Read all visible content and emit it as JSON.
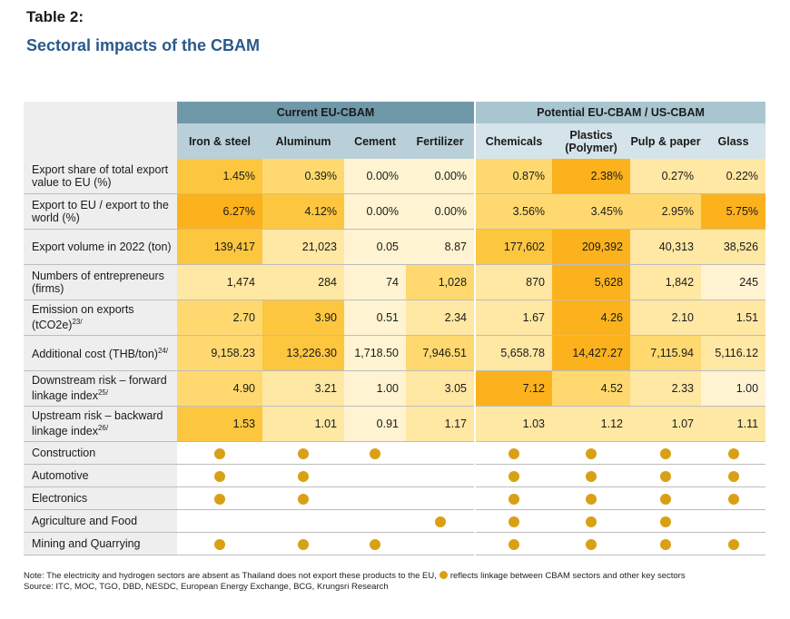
{
  "label": "Table 2:",
  "title": "Sectoral impacts of the CBAM",
  "groups": {
    "current": "Current EU-CBAM",
    "potential": "Potential EU-CBAM / US-CBAM"
  },
  "columns": [
    "Iron & steel",
    "Aluminum",
    "Cement",
    "Fertilizer",
    "Chemicals",
    "Plastics (Polymer)",
    "Pulp & paper",
    "Glass"
  ],
  "rows": [
    {
      "label": "Export share of total export value to EU (%)",
      "values": [
        "1.45%",
        "0.39%",
        "0.00%",
        "0.00%",
        "0.87%",
        "2.38%",
        "0.27%",
        "0.22%"
      ]
    },
    {
      "label": "Export to EU / export to the world (%)",
      "values": [
        "6.27%",
        "4.12%",
        "0.00%",
        "0.00%",
        "3.56%",
        "3.45%",
        "2.95%",
        "5.75%"
      ]
    },
    {
      "label": "Export volume in 2022 (ton)",
      "values": [
        "139,417",
        "21,023",
        "0.05",
        "8.87",
        "177,602",
        "209,392",
        "40,313",
        "38,526"
      ]
    },
    {
      "label": "Numbers of entrepreneurs (firms)",
      "values": [
        "1,474",
        "284",
        "74",
        "1,028",
        "870",
        "5,628",
        "1,842",
        "245"
      ]
    },
    {
      "label": "Emission on exports (tCO2e)",
      "sup": "23/",
      "values": [
        "2.70",
        "3.90",
        "0.51",
        "2.34",
        "1.67",
        "4.26",
        "2.10",
        "1.51"
      ]
    },
    {
      "label": "Additional cost (THB/ton)",
      "sup": "24/",
      "values": [
        "9,158.23",
        "13,226.30",
        "1,718.50",
        "7,946.51",
        "5,658.78",
        "14,427.27",
        "7,115.94",
        "5,116.12"
      ]
    },
    {
      "label": "Downstream risk – forward linkage index",
      "sup": "25/",
      "values": [
        "4.90",
        "3.21",
        "1.00",
        "3.05",
        "7.12",
        "4.52",
        "2.33",
        "1.00"
      ]
    },
    {
      "label": "Upstream risk – backward linkage index",
      "sup": "26/",
      "values": [
        "1.53",
        "1.01",
        "0.91",
        "1.17",
        "1.03",
        "1.12",
        "1.07",
        "1.11"
      ]
    }
  ],
  "sectors": [
    {
      "label": "Construction",
      "dots": [
        true,
        true,
        true,
        false,
        true,
        true,
        true,
        true
      ]
    },
    {
      "label": "Automotive",
      "dots": [
        true,
        true,
        false,
        false,
        true,
        true,
        true,
        true
      ]
    },
    {
      "label": "Electronics",
      "dots": [
        true,
        true,
        false,
        false,
        true,
        true,
        true,
        true
      ]
    },
    {
      "label": "Agriculture and Food",
      "dots": [
        false,
        false,
        false,
        true,
        true,
        true,
        true,
        false
      ]
    },
    {
      "label": "Mining and Quarrying",
      "dots": [
        true,
        true,
        true,
        false,
        true,
        true,
        true,
        true
      ]
    }
  ],
  "colors": {
    "heat": [
      "#fff3d1",
      "#ffe7a4",
      "#ffd970",
      "#fdc63f",
      "#fbb21c"
    ],
    "dot": "#d9a016",
    "title": "#2a5a8a"
  },
  "heat_levels": [
    [
      3,
      2,
      0,
      0,
      2,
      4,
      1,
      1
    ],
    [
      4,
      3,
      0,
      0,
      2,
      2,
      2,
      4
    ],
    [
      3,
      1,
      0,
      0,
      3,
      4,
      1,
      1
    ],
    [
      1,
      1,
      0,
      2,
      1,
      4,
      1,
      0
    ],
    [
      2,
      3,
      0,
      1,
      1,
      4,
      1,
      1
    ],
    [
      2,
      3,
      0,
      2,
      1,
      4,
      2,
      1
    ],
    [
      2,
      1,
      0,
      1,
      4,
      2,
      1,
      0
    ],
    [
      3,
      1,
      0,
      1,
      1,
      1,
      1,
      1
    ]
  ],
  "note": {
    "line1_a": "Note: The electricity and hydrogen sectors are absent as Thailand does not export these products to the EU,",
    "line1_b": "reflects linkage between CBAM sectors and other key sectors",
    "line2": "Source: ITC, MOC, TGO, DBD, NESDC, European Energy Exchange, BCG, Krungsri Research"
  }
}
